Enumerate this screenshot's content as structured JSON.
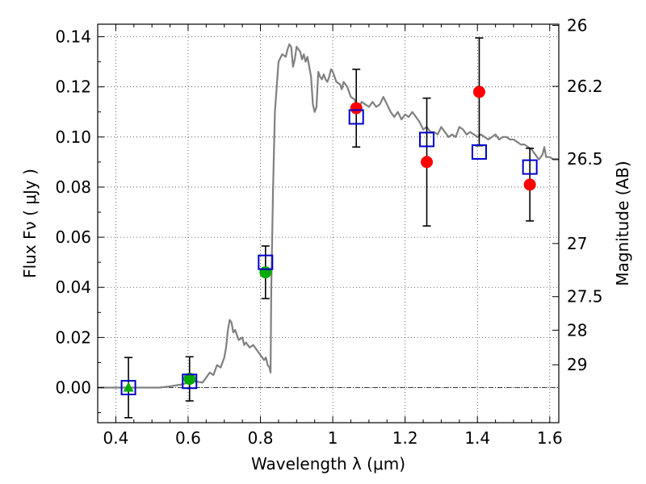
{
  "chart_data": {
    "type": "scatter",
    "xlabel": "Wavelength  λ (μm)",
    "ylabel": "Flux  Fν  ( μJy )",
    "y2label": "Magnitude (AB)",
    "xlim": [
      0.35,
      1.625
    ],
    "ylim": [
      -0.014,
      0.145
    ],
    "x_ticks": [
      0.4,
      0.6,
      0.8,
      1.0,
      1.2,
      1.4,
      1.6
    ],
    "x_tick_labels": [
      "0.4",
      "0.6",
      "0.8",
      "1",
      "1.2",
      "1.4",
      "1.6"
    ],
    "y_ticks": [
      0.0,
      0.02,
      0.04,
      0.06,
      0.08,
      0.1,
      0.12,
      0.14
    ],
    "y_tick_labels": [
      "0.00",
      "0.02",
      "0.04",
      "0.06",
      "0.08",
      "0.10",
      "0.12",
      "0.14"
    ],
    "y2_ticks": [
      {
        "label": "26",
        "flux": 0.1445
      },
      {
        "label": "26.2",
        "flux": 0.1202
      },
      {
        "label": "26.5",
        "flux": 0.0912
      },
      {
        "label": "27",
        "flux": 0.0575
      },
      {
        "label": "27.5",
        "flux": 0.0363
      },
      {
        "label": "28",
        "flux": 0.0229
      },
      {
        "label": "29",
        "flux": 0.0091
      }
    ],
    "grid": true,
    "zero_line": true,
    "colors": {
      "model": "#808080",
      "red_points": "#ff0000",
      "green_points": "#00aa00",
      "squares": "#0000cc",
      "errorbars": "#000000"
    },
    "series": [
      {
        "marker": "line",
        "points": [
          [
            0.35,
            0
          ],
          [
            0.52,
            0
          ],
          [
            0.55,
            0.0005
          ],
          [
            0.58,
            0.0012
          ],
          [
            0.6,
            0.002
          ],
          [
            0.62,
            0.0025
          ],
          [
            0.64,
            0.002
          ],
          [
            0.65,
            0.004
          ],
          [
            0.66,
            0.006
          ],
          [
            0.67,
            0.005
          ],
          [
            0.68,
            0.009
          ],
          [
            0.69,
            0.008
          ],
          [
            0.7,
            0.012
          ],
          [
            0.705,
            0.016
          ],
          [
            0.71,
            0.023
          ],
          [
            0.715,
            0.027
          ],
          [
            0.72,
            0.026
          ],
          [
            0.725,
            0.022
          ],
          [
            0.73,
            0.023
          ],
          [
            0.735,
            0.021
          ],
          [
            0.74,
            0.019
          ],
          [
            0.75,
            0.02
          ],
          [
            0.755,
            0.017
          ],
          [
            0.76,
            0.018
          ],
          [
            0.77,
            0.016
          ],
          [
            0.78,
            0.017
          ],
          [
            0.79,
            0.015
          ],
          [
            0.8,
            0.013
          ],
          [
            0.81,
            0.011
          ],
          [
            0.815,
            0.012
          ],
          [
            0.82,
            0.009
          ],
          [
            0.825,
            0.008
          ],
          [
            0.828,
            0.006
          ],
          [
            0.83,
            0.04
          ],
          [
            0.835,
            0.08
          ],
          [
            0.84,
            0.11
          ],
          [
            0.85,
            0.13
          ],
          [
            0.86,
            0.133
          ],
          [
            0.87,
            0.132
          ],
          [
            0.875,
            0.135
          ],
          [
            0.88,
            0.137
          ],
          [
            0.885,
            0.136
          ],
          [
            0.89,
            0.128
          ],
          [
            0.895,
            0.131
          ],
          [
            0.9,
            0.136
          ],
          [
            0.91,
            0.134
          ],
          [
            0.915,
            0.131
          ],
          [
            0.92,
            0.133
          ],
          [
            0.925,
            0.13
          ],
          [
            0.93,
            0.132
          ],
          [
            0.935,
            0.128
          ],
          [
            0.94,
            0.124
          ],
          [
            0.945,
            0.113
          ],
          [
            0.95,
            0.11
          ],
          [
            0.955,
            0.112
          ],
          [
            0.96,
            0.126
          ],
          [
            0.965,
            0.124
          ],
          [
            0.97,
            0.123
          ],
          [
            0.975,
            0.125
          ],
          [
            0.98,
            0.123
          ],
          [
            0.985,
            0.122
          ],
          [
            0.99,
            0.124
          ],
          [
            0.995,
            0.127
          ],
          [
            1.0,
            0.126
          ],
          [
            1.01,
            0.122
          ],
          [
            1.02,
            0.121
          ],
          [
            1.025,
            0.119
          ],
          [
            1.03,
            0.122
          ],
          [
            1.04,
            0.12
          ],
          [
            1.05,
            0.116
          ],
          [
            1.06,
            0.115
          ],
          [
            1.07,
            0.111
          ],
          [
            1.08,
            0.114
          ],
          [
            1.09,
            0.113
          ],
          [
            1.1,
            0.112
          ],
          [
            1.11,
            0.114
          ],
          [
            1.12,
            0.112
          ],
          [
            1.13,
            0.113
          ],
          [
            1.14,
            0.116
          ],
          [
            1.15,
            0.113
          ],
          [
            1.16,
            0.11
          ],
          [
            1.17,
            0.108
          ],
          [
            1.18,
            0.11
          ],
          [
            1.19,
            0.107
          ],
          [
            1.2,
            0.109
          ],
          [
            1.21,
            0.108
          ],
          [
            1.22,
            0.11
          ],
          [
            1.23,
            0.108
          ],
          [
            1.24,
            0.106
          ],
          [
            1.25,
            0.103
          ],
          [
            1.26,
            0.104
          ],
          [
            1.27,
            0.102
          ],
          [
            1.28,
            0.102
          ],
          [
            1.29,
            0.101
          ],
          [
            1.3,
            0.104
          ],
          [
            1.31,
            0.102
          ],
          [
            1.32,
            0.1
          ],
          [
            1.33,
            0.101
          ],
          [
            1.34,
            0.1
          ],
          [
            1.35,
            0.104
          ],
          [
            1.36,
            0.103
          ],
          [
            1.37,
            0.101
          ],
          [
            1.38,
            0.102
          ],
          [
            1.39,
            0.101
          ],
          [
            1.4,
            0.1
          ],
          [
            1.41,
            0.101
          ],
          [
            1.42,
            0.1
          ],
          [
            1.43,
            0.099
          ],
          [
            1.44,
            0.1
          ],
          [
            1.45,
            0.101
          ],
          [
            1.46,
            0.099
          ],
          [
            1.47,
            0.1
          ],
          [
            1.48,
            0.1
          ],
          [
            1.49,
            0.099
          ],
          [
            1.5,
            0.099
          ],
          [
            1.51,
            0.098
          ],
          [
            1.52,
            0.097
          ],
          [
            1.53,
            0.097
          ],
          [
            1.54,
            0.096
          ],
          [
            1.55,
            0.095
          ],
          [
            1.56,
            0.093
          ],
          [
            1.57,
            0.091
          ],
          [
            1.58,
            0.093
          ],
          [
            1.585,
            0.096
          ],
          [
            1.59,
            0.092
          ],
          [
            1.6,
            0.092
          ],
          [
            1.61,
            0.091
          ],
          [
            1.625,
            0.091
          ]
        ]
      },
      {
        "marker": "errorbar",
        "points": [
          {
            "x": 0.435,
            "y": 0.0,
            "err": 0.012
          },
          {
            "x": 0.604,
            "y": 0.0035,
            "err": 0.0088
          },
          {
            "x": 0.814,
            "y": 0.046,
            "err": 0.0105
          },
          {
            "x": 1.065,
            "y": 0.1115,
            "err": 0.0155
          },
          {
            "x": 1.26,
            "y": 0.09,
            "err": 0.0255
          },
          {
            "x": 1.405,
            "y": 0.118,
            "err": 0.0215
          },
          {
            "x": 1.545,
            "y": 0.081,
            "err": 0.0145
          }
        ]
      },
      {
        "marker": "circle-green",
        "points": [
          [
            0.604,
            0.0035
          ],
          [
            0.814,
            0.046
          ]
        ]
      },
      {
        "marker": "triangle-green",
        "points": [
          [
            0.435,
            0.0
          ]
        ]
      },
      {
        "marker": "circle-red",
        "points": [
          [
            1.065,
            0.1115
          ],
          [
            1.26,
            0.09
          ],
          [
            1.405,
            0.118
          ],
          [
            1.545,
            0.081
          ]
        ]
      },
      {
        "marker": "square-open",
        "points": [
          [
            0.435,
            0.0
          ],
          [
            0.604,
            0.0025
          ],
          [
            0.814,
            0.05
          ],
          [
            1.065,
            0.108
          ],
          [
            1.26,
            0.099
          ],
          [
            1.405,
            0.094
          ],
          [
            1.545,
            0.088
          ]
        ]
      }
    ]
  }
}
